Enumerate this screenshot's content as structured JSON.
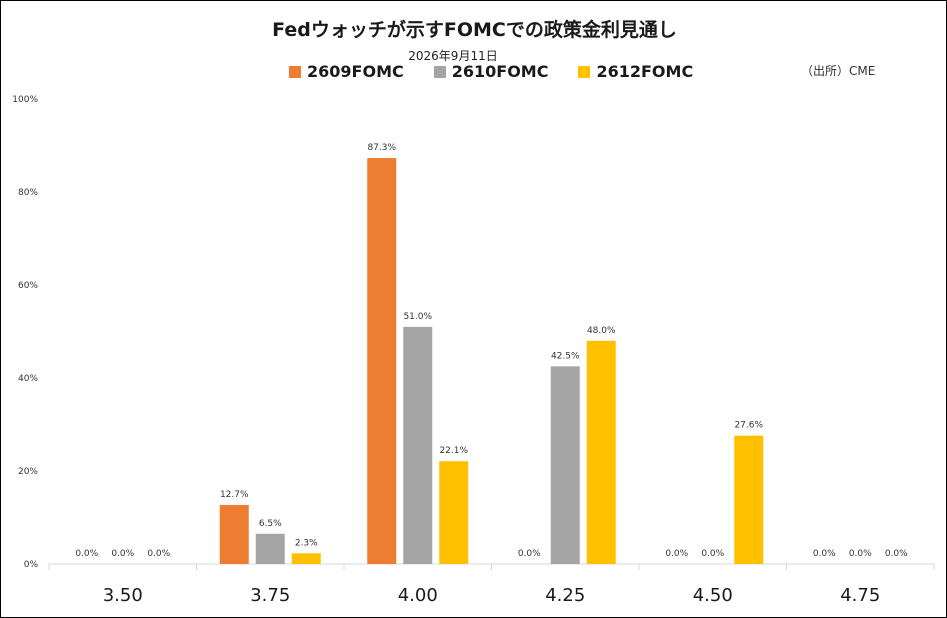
{
  "chart_data": {
    "type": "bar",
    "title": "Fedウォッチが示すFOMCでの政策金利見通し",
    "subtitle": "2026年9月11日",
    "source": "（出所）CME",
    "categories": [
      "3.50",
      "3.75",
      "4.00",
      "4.25",
      "4.50",
      "4.75"
    ],
    "series": [
      {
        "name": "2609FOMC",
        "color": "#ED7D31",
        "values": [
          0.0,
          12.7,
          87.3,
          0.0,
          0.0,
          0.0
        ]
      },
      {
        "name": "2610FOMC",
        "color": "#A5A5A5",
        "values": [
          0.0,
          6.5,
          51.0,
          42.5,
          0.0,
          0.0
        ]
      },
      {
        "name": "2612FOMC",
        "color": "#FFC000",
        "values": [
          0.0,
          2.3,
          22.1,
          48.0,
          27.6,
          0.0
        ]
      }
    ],
    "ylim": [
      0,
      100
    ],
    "yticks": [
      "0%",
      "20%",
      "40%",
      "60%",
      "80%",
      "100%"
    ],
    "ytick_values": [
      0,
      20,
      40,
      60,
      80,
      100
    ],
    "value_suffix": "%",
    "grid": false,
    "legend_position": "top"
  }
}
